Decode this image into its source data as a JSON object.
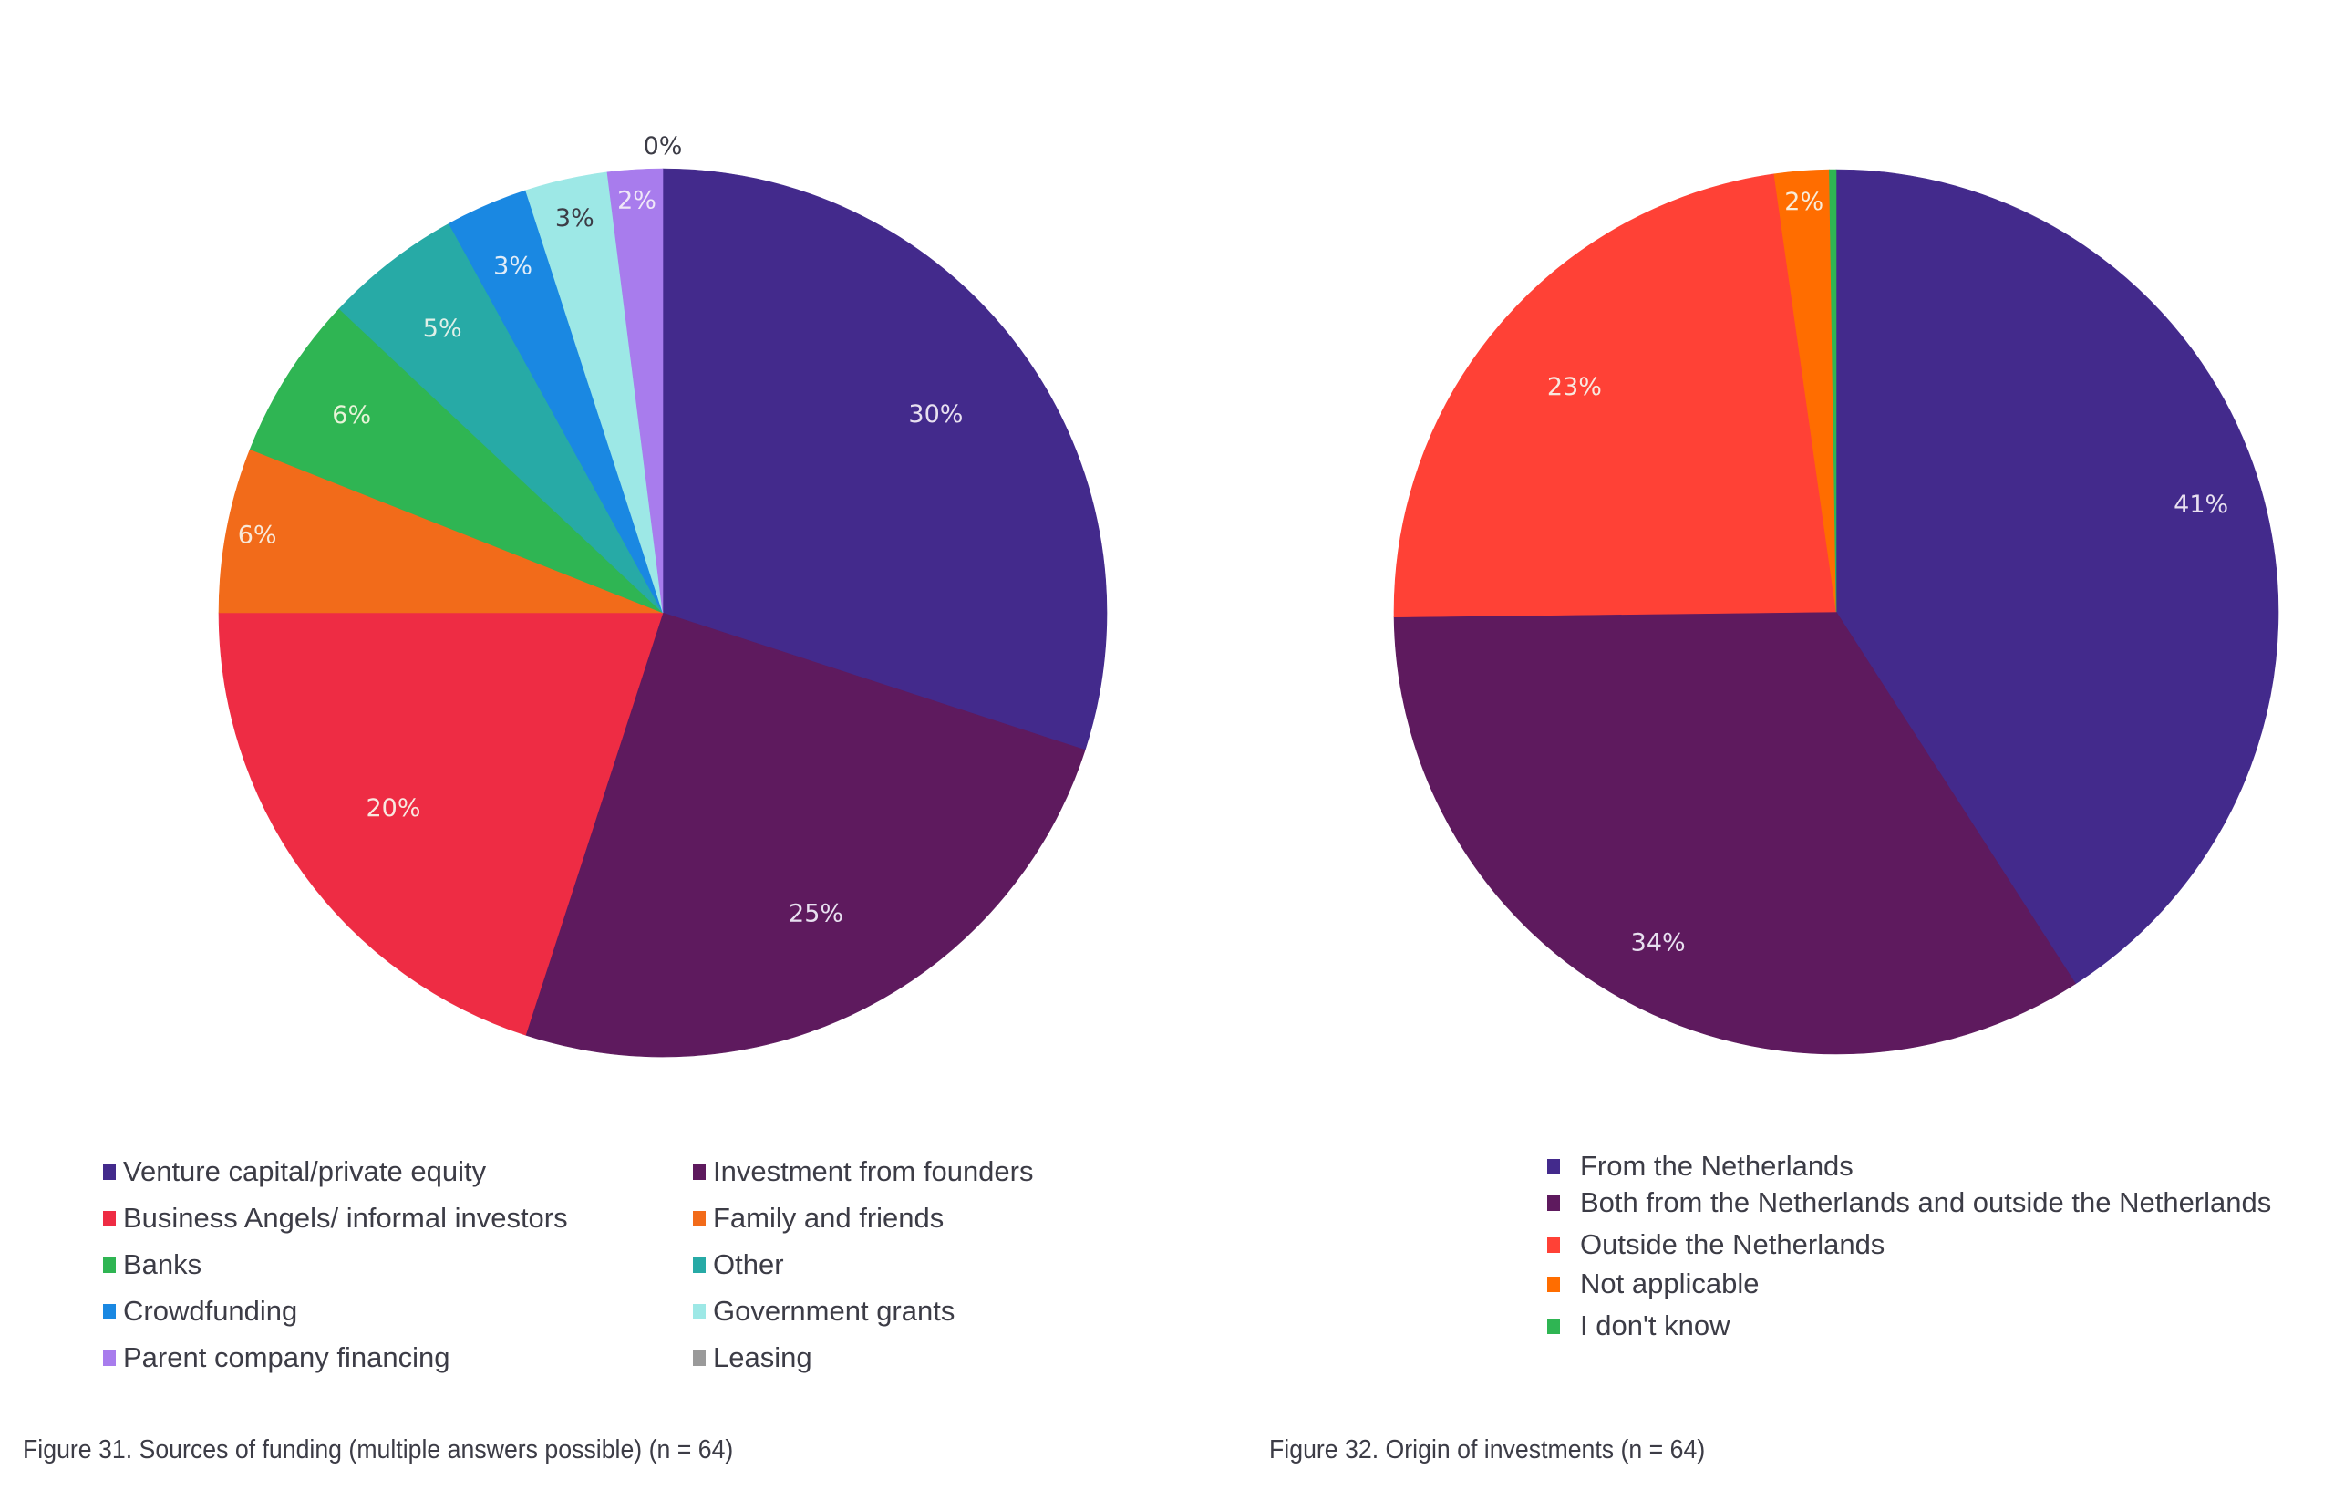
{
  "chart_data": [
    {
      "type": "pie",
      "title": "Figure 31. Sources of funding (multiple answers possible) (n = 64)",
      "categories": [
        "Venture capital/private equity",
        "Investment from founders",
        "Business Angels/ informal investors",
        "Family and friends",
        "Banks",
        "Other",
        "Crowdfunding",
        "Government grants",
        "Parent company financing",
        "Leasing"
      ],
      "values": [
        30,
        25,
        20,
        6,
        6,
        5,
        3,
        3,
        2,
        0
      ],
      "labels": [
        "30%",
        "25%",
        "20%",
        "6%",
        "6%",
        "5%",
        "3%",
        "3%",
        "2%",
        "0%"
      ],
      "colors": [
        "#432a8c",
        "#5e1a5e",
        "#ee2c44",
        "#f26b1a",
        "#2fb553",
        "#27aaa6",
        "#1a88e2",
        "#9de8e6",
        "#a87ced",
        "#9a9a9a"
      ],
      "label_colors": [
        "#e8e0f0",
        "#e8e0f0",
        "#f8e8e0",
        "#f8e8d8",
        "#e8f4d8",
        "#e0f0e8",
        "#e0ecf8",
        "#3c3c46",
        "#f0e8f8",
        "#3c3c46"
      ],
      "start_angle": "12 o'clock",
      "direction": "clockwise",
      "legend_position": "bottom",
      "legend_columns": 2
    },
    {
      "type": "pie",
      "title": "Figure 32. Origin of investments (n = 64)",
      "categories": [
        "From the Netherlands",
        "Both from the Netherlands and outside the Netherlands",
        "Outside the Netherlands",
        "Not applicable",
        "I don't know"
      ],
      "values": [
        41,
        34,
        23,
        2,
        0
      ],
      "labels": [
        "41%",
        "34%",
        "23%",
        "2%",
        ""
      ],
      "colors": [
        "#432a8c",
        "#5e1a5e",
        "#ff4136",
        "#ff6d00",
        "#2fb553"
      ],
      "label_colors": [
        "#e8e0f0",
        "#e8e0f0",
        "#f8e8e0",
        "#f8ecd8",
        "#ffffff"
      ],
      "start_angle": "12 o'clock",
      "direction": "clockwise",
      "legend_position": "bottom",
      "legend_columns": 1
    }
  ],
  "captions": {
    "figure31": "Figure 31. Sources of funding (multiple answers possible) (n = 64)",
    "figure32": "Figure 32. Origin of investments (n = 64)"
  }
}
